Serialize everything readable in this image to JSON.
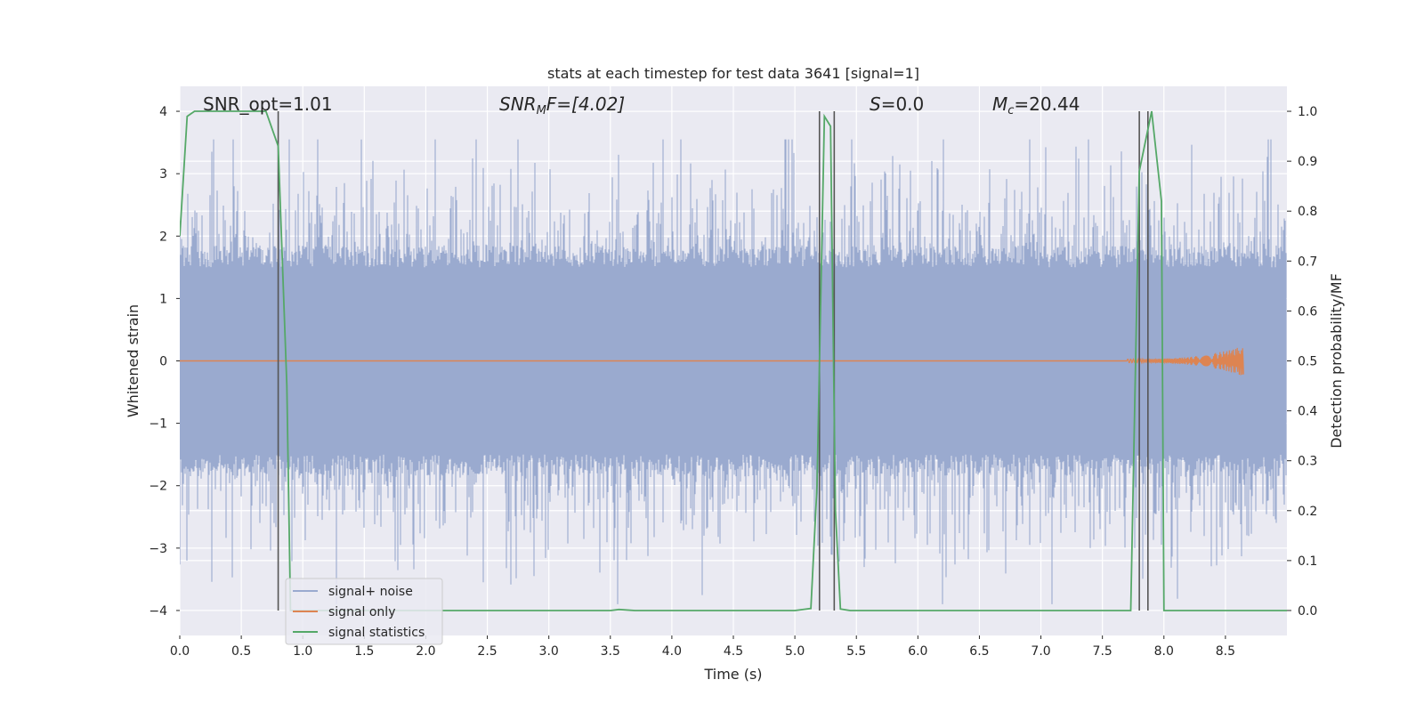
{
  "chart_data": {
    "type": "line",
    "title": "stats at each timestep for test data 3641 [signal=1]",
    "xlabel": "Time (s)",
    "ylabel": "Whitened strain",
    "y2label": "Detection probability/MF",
    "xlim": [
      0.0,
      9.0
    ],
    "ylim": [
      -4.4,
      4.4
    ],
    "y2lim": [
      -0.05,
      1.05
    ],
    "xticks": [
      0.0,
      0.5,
      1.0,
      1.5,
      2.0,
      2.5,
      3.0,
      3.5,
      4.0,
      4.5,
      5.0,
      5.5,
      6.0,
      6.5,
      7.0,
      7.5,
      8.0,
      8.5
    ],
    "xtick_labels": [
      "0.0",
      "0.5",
      "1.0",
      "1.5",
      "2.0",
      "2.5",
      "3.0",
      "3.5",
      "4.0",
      "4.5",
      "5.0",
      "5.5",
      "6.0",
      "6.5",
      "7.0",
      "7.5",
      "8.0",
      "8.5"
    ],
    "yticks": [
      4,
      3,
      2,
      1,
      0,
      -1,
      -2,
      -3,
      -4
    ],
    "ytick_labels": [
      "4",
      "3",
      "2",
      "1",
      "0",
      "−1",
      "−2",
      "−3",
      "−4"
    ],
    "y2ticks": [
      1.0,
      0.9,
      0.8,
      0.7,
      0.6,
      0.5,
      0.4,
      0.3,
      0.2,
      0.1,
      0.0
    ],
    "y2tick_labels": [
      "1.0",
      "0.9",
      "0.8",
      "0.7",
      "0.6",
      "0.5",
      "0.4",
      "0.3",
      "0.2",
      "0.1",
      "0.0"
    ],
    "annotations": {
      "snr_opt": "SNR_opt=1.01",
      "snr_mf_sym": "SNR",
      "snr_mf_sub": "M",
      "snr_mf_rest": "F=[4.02]",
      "s_sym": "S",
      "s_rest": "=0.0",
      "mc_sym": "M",
      "mc_sub": "c",
      "mc_rest": "=20.44"
    },
    "series": [
      {
        "name": "signal+ noise",
        "color": "#9aaacf",
        "description": "whitened noisy strain, roughly uniform envelope about ±1.6 with spikes to about ±3.5",
        "time_range": [
          0.0,
          9.0
        ]
      },
      {
        "name": "signal only",
        "color": "#dd8452",
        "description": "chirp signal, near zero until about 7.8 s, growing to about ±0.25 near 8.65 s",
        "time_range": [
          0.0,
          8.65
        ]
      },
      {
        "name": "signal statistics",
        "color": "#55a868",
        "axis": "right",
        "x": [
          0.0,
          0.06,
          0.12,
          0.2,
          0.4,
          0.6,
          0.7,
          0.8,
          0.87,
          0.9,
          1.0,
          2.0,
          3.0,
          3.5,
          3.57,
          3.7,
          4.5,
          5.0,
          5.13,
          5.18,
          5.24,
          5.29,
          5.33,
          5.37,
          5.45,
          6.0,
          7.0,
          7.5,
          7.73,
          7.8,
          7.9,
          7.98,
          8.0,
          8.5,
          9.0
        ],
        "values": [
          0.75,
          0.99,
          1.0,
          1.0,
          1.0,
          1.0,
          1.0,
          0.93,
          0.45,
          0.0,
          0.0,
          0.0,
          0.0,
          0.0,
          0.002,
          0.0,
          0.0,
          0.0,
          0.004,
          0.25,
          0.99,
          0.97,
          0.2,
          0.003,
          0.0,
          0.0,
          0.0,
          0.0,
          0.0,
          0.88,
          1.0,
          0.82,
          0.0,
          0.0,
          0.0
        ]
      }
    ],
    "vertical_markers": [
      0.8,
      5.2,
      5.32,
      7.8,
      7.87
    ],
    "legend": {
      "position": "lower-left",
      "items": [
        {
          "label": "signal+ noise",
          "color": "#9aaacf"
        },
        {
          "label": "signal only",
          "color": "#dd8452"
        },
        {
          "label": "signal statistics",
          "color": "#55a868"
        }
      ]
    },
    "grid": true,
    "colors": {
      "plot_background": "#eaeaf2",
      "grid": "#ffffff",
      "marker": "#555555"
    }
  }
}
